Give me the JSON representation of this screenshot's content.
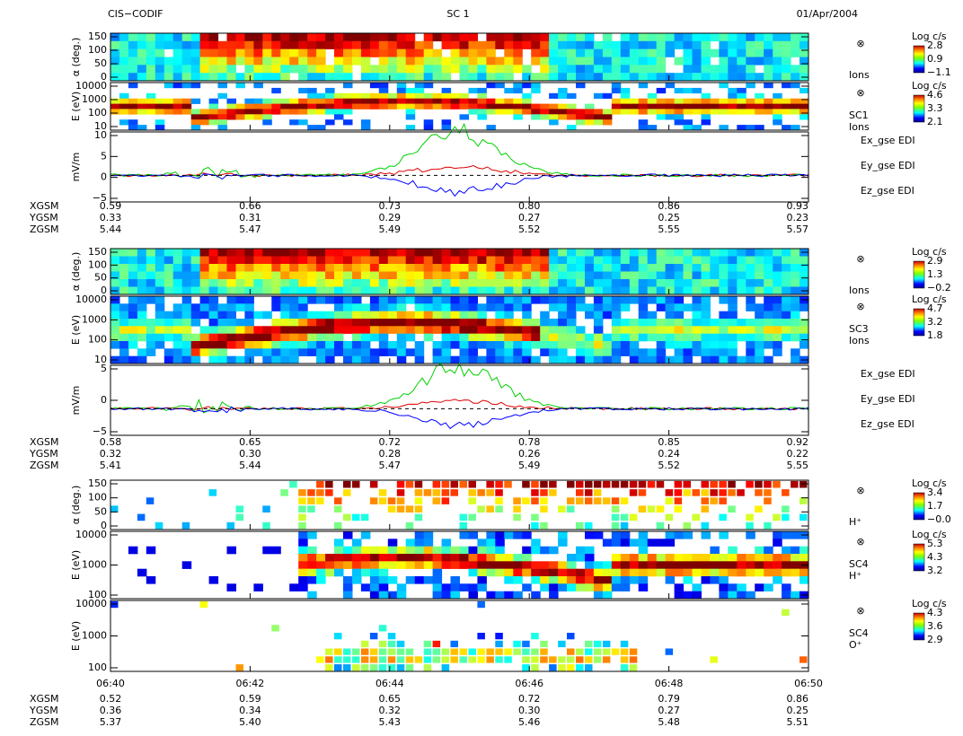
{
  "header": {
    "left": "CIS−CODIF",
    "center": "SC 1",
    "right": "01/Apr/2004"
  },
  "groups": [
    {
      "panels": [
        {
          "ylabel": "α (deg.)",
          "yticks": [
            "150",
            "100",
            "50",
            "0"
          ],
          "side": [
            "⊗",
            "Ions"
          ],
          "colorbar": [
            "Log c/s",
            "2.8",
            "0.9",
            "−1.1"
          ]
        },
        {
          "ylabel": "E (eV)",
          "yticks": [
            "10000",
            "1000",
            "100",
            "10"
          ],
          "side": [
            "⊗",
            "SC1",
            "Ions"
          ],
          "colorbar": [
            "Log c/s",
            "4.6",
            "3.3",
            "2.1"
          ]
        },
        {
          "ylabel": "mV/m",
          "yticks": [
            "10",
            "5",
            "0",
            "−5"
          ],
          "legend": [
            "Ex_gse EDI",
            "Ey_gse EDI",
            "Ez_gse EDI"
          ]
        }
      ],
      "orbit": {
        "labels": [
          "XGSM",
          "YGSM",
          "ZGSM"
        ],
        "rows": [
          [
            "0.59",
            "0.66",
            "0.73",
            "0.80",
            "0.86",
            "0.93"
          ],
          [
            "0.33",
            "0.31",
            "0.29",
            "0.27",
            "0.25",
            "0.23"
          ],
          [
            "5.44",
            "5.47",
            "5.49",
            "5.52",
            "5.55",
            "5.57"
          ]
        ]
      }
    },
    {
      "panels": [
        {
          "ylabel": "α (deg.)",
          "yticks": [
            "150",
            "100",
            "50",
            "0"
          ],
          "side": [
            "⊗",
            "Ions"
          ],
          "colorbar": [
            "Log c/s",
            "2.9",
            "1.3",
            "−0.2"
          ]
        },
        {
          "ylabel": "E (eV)",
          "yticks": [
            "10000",
            "1000",
            "100",
            "10"
          ],
          "side": [
            "⊗",
            "SC3",
            "Ions"
          ],
          "colorbar": [
            "Log c/s",
            "4.7",
            "3.2",
            "1.8"
          ]
        },
        {
          "ylabel": "mV/m",
          "yticks": [
            "5",
            "0",
            "−5"
          ],
          "legend": [
            "Ex_gse EDI",
            "Ey_gse EDI",
            "Ez_gse EDI"
          ]
        }
      ],
      "orbit": {
        "labels": [
          "XGSM",
          "YGSM",
          "ZGSM"
        ],
        "rows": [
          [
            "0.58",
            "0.65",
            "0.72",
            "0.78",
            "0.85",
            "0.92"
          ],
          [
            "0.32",
            "0.30",
            "0.28",
            "0.26",
            "0.24",
            "0.22"
          ],
          [
            "5.41",
            "5.44",
            "5.47",
            "5.49",
            "5.52",
            "5.55"
          ]
        ]
      }
    },
    {
      "panels": [
        {
          "ylabel": "α (deg.)",
          "yticks": [
            "150",
            "100",
            "50",
            "0"
          ],
          "side": [
            "⊗",
            "H⁺"
          ],
          "colorbar": [
            "Log c/s",
            "3.4",
            "1.7",
            "−0.0"
          ]
        },
        {
          "ylabel": "E (eV)",
          "yticks": [
            "10000",
            "1000",
            "100"
          ],
          "side": [
            "⊗",
            "SC4",
            "H⁺"
          ],
          "colorbar": [
            "Log c/s",
            "5.3",
            "4.3",
            "3.2"
          ]
        },
        {
          "ylabel": "E (eV)",
          "yticks": [
            "10000",
            "1000",
            "100"
          ],
          "side": [
            "⊗",
            "SC4",
            "O⁺"
          ],
          "colorbar": [
            "Log c/s",
            "4.3",
            "3.6",
            "2.9"
          ]
        }
      ],
      "times": [
        "06:40",
        "06:42",
        "06:44",
        "06:46",
        "06:48",
        "06:50"
      ],
      "orbit": {
        "labels": [
          "XGSM",
          "YGSM",
          "ZGSM"
        ],
        "rows": [
          [
            "0.52",
            "0.59",
            "0.65",
            "0.72",
            "0.79",
            "0.86"
          ],
          [
            "0.36",
            "0.34",
            "0.32",
            "0.30",
            "0.27",
            "0.25"
          ],
          [
            "5.37",
            "5.40",
            "5.43",
            "5.46",
            "5.48",
            "5.51"
          ]
        ]
      }
    }
  ]
}
